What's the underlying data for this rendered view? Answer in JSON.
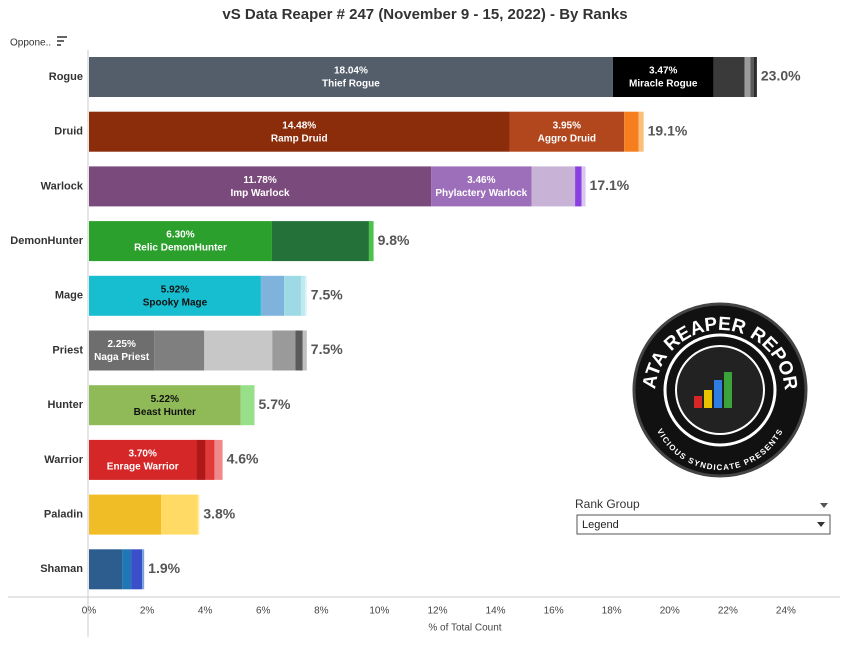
{
  "chart_data": {
    "type": "stacked_bar_horizontal",
    "title": "vS Data Reaper #  247 (November 9 - 15, 2022) - By Ranks",
    "row_header": "Oppone..",
    "x_label": "% of Total Count",
    "xlim": [
      0,
      26
    ],
    "xticks": [
      {
        "value": 0,
        "label": "0%"
      },
      {
        "value": 2,
        "label": "2%"
      },
      {
        "value": 4,
        "label": "4%"
      },
      {
        "value": 6,
        "label": "6%"
      },
      {
        "value": 8,
        "label": "8%"
      },
      {
        "value": 10,
        "label": "10%"
      },
      {
        "value": 12,
        "label": "12%"
      },
      {
        "value": 14,
        "label": "14%"
      },
      {
        "value": 16,
        "label": "16%"
      },
      {
        "value": 18,
        "label": "18%"
      },
      {
        "value": 20,
        "label": "20%"
      },
      {
        "value": 22,
        "label": "22%"
      },
      {
        "value": 24,
        "label": "24%"
      }
    ],
    "grid": false,
    "rows": [
      {
        "category": "Rogue",
        "total": 23.0,
        "total_label": "23.0%",
        "label_color": "#ffffff",
        "values": [
          18.04,
          3.47,
          1.07,
          0.2,
          0.12,
          0.1
        ],
        "value_labels": [
          "18.04%",
          "3.47%",
          null,
          null,
          null,
          null
        ],
        "names": [
          "Thief Rogue",
          "Miracle Rogue",
          null,
          null,
          null,
          null
        ],
        "colors": [
          "#535e6a",
          "#000000",
          "#3a3a3a",
          "#9a9a9a",
          "#5a5a5a",
          "#2b2b2b"
        ]
      },
      {
        "category": "Druid",
        "total": 19.1,
        "total_label": "19.1%",
        "label_color": "#ffffff",
        "values": [
          14.48,
          3.95,
          0.5,
          0.17
        ],
        "value_labels": [
          "14.48%",
          "3.95%",
          null,
          null
        ],
        "names": [
          "Ramp Druid",
          "Aggro Druid",
          null,
          null
        ],
        "colors": [
          "#8b2c0b",
          "#b2471d",
          "#f57f1f",
          "#fbbf7a"
        ]
      },
      {
        "category": "Warlock",
        "total": 17.1,
        "total_label": "17.1%",
        "label_color": "#ffffff",
        "values": [
          11.78,
          3.46,
          1.5,
          0.22,
          0.14
        ],
        "value_labels": [
          "11.78%",
          "3.46%",
          null,
          null,
          null
        ],
        "names": [
          "Imp Warlock",
          "Phylactery Warlock",
          null,
          null,
          null
        ],
        "colors": [
          "#7b4a7c",
          "#9d6fba",
          "#c8b2d6",
          "#8a3fe0",
          "#d9c6ee"
        ]
      },
      {
        "category": "DemonHunter",
        "total": 9.8,
        "total_label": "9.8%",
        "label_color": "#ffffff",
        "values": [
          6.3,
          3.34,
          0.16
        ],
        "value_labels": [
          "6.30%",
          null,
          null
        ],
        "names": [
          "Relic DemonHunter",
          null,
          null
        ],
        "colors": [
          "#2ca02c",
          "#24723a",
          "#4cc24c"
        ]
      },
      {
        "category": "Mage",
        "total": 7.5,
        "total_label": "7.5%",
        "label_color": "#111111",
        "values": [
          5.92,
          0.8,
          0.58,
          0.14,
          0.06
        ],
        "value_labels": [
          "5.92%",
          null,
          null,
          null,
          null
        ],
        "names": [
          "Spooky Mage",
          null,
          null,
          null,
          null
        ],
        "colors": [
          "#17becf",
          "#7fb2dc",
          "#9edae5",
          "#bfeaf2",
          "#d8f4f8"
        ]
      },
      {
        "category": "Priest",
        "total": 7.5,
        "total_label": "7.5%",
        "label_color": "#ffffff",
        "values": [
          2.25,
          1.72,
          2.34,
          0.8,
          0.25,
          0.14
        ],
        "value_labels": [
          "2.25%",
          null,
          null,
          null,
          null,
          null
        ],
        "names": [
          "Naga Priest",
          null,
          null,
          null,
          null,
          null
        ],
        "colors": [
          "#6e6e6e",
          "#7f7f7f",
          "#c7c7c7",
          "#9a9a9a",
          "#5a5a5a",
          "#bfbfbf"
        ]
      },
      {
        "category": "Hunter",
        "total": 5.7,
        "total_label": "5.7%",
        "label_color": "#111111",
        "values": [
          5.22,
          0.48
        ],
        "value_labels": [
          "5.22%",
          null
        ],
        "names": [
          "Beast Hunter",
          null
        ],
        "colors": [
          "#8fba57",
          "#98df8a"
        ]
      },
      {
        "category": "Warrior",
        "total": 4.6,
        "total_label": "4.6%",
        "label_color": "#ffffff",
        "values": [
          3.7,
          0.31,
          0.31,
          0.28
        ],
        "value_labels": [
          "3.70%",
          null,
          null,
          null
        ],
        "names": [
          "Enrage Warrior",
          null,
          null,
          null
        ],
        "colors": [
          "#d62728",
          "#b01818",
          "#e03a3a",
          "#f08a8a"
        ]
      },
      {
        "category": "Paladin",
        "total": 3.8,
        "total_label": "3.8%",
        "label_color": "#ffffff",
        "values": [
          2.48,
          1.27,
          0.05
        ],
        "value_labels": [
          null,
          null,
          null
        ],
        "names": [
          null,
          null,
          null
        ],
        "colors": [
          "#f0bd26",
          "#ffdb66",
          "#fff0a0"
        ]
      },
      {
        "category": "Shaman",
        "total": 1.9,
        "total_label": "1.9%",
        "label_color": "#ffffff",
        "values": [
          1.14,
          0.31,
          0.38,
          0.07
        ],
        "value_labels": [
          null,
          null,
          null,
          null
        ],
        "names": [
          null,
          null,
          null,
          null
        ],
        "colors": [
          "#2c5d8e",
          "#1f77b4",
          "#3950c8",
          "#7aa0e0"
        ]
      }
    ]
  },
  "legend": {
    "title": "Rank Group",
    "selected": "Legend"
  },
  "logo": {
    "title": "DATA REAPER REPORT",
    "subtitle": "VICIOUS SYNDICATE PRESENTS"
  }
}
